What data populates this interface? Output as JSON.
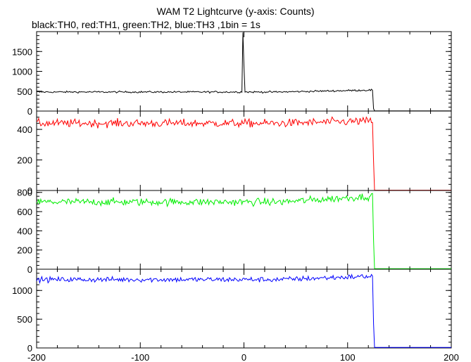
{
  "title": "WAM T2 Lightcurve (y-axis: Counts)",
  "subtitle": "black:TH0, red:TH1, green:TH2, blue:TH3 ,1bin = 1s",
  "chart_data": {
    "type": "line",
    "xlim": [
      -200,
      200
    ],
    "x_ticks": [
      -200,
      -100,
      0,
      100,
      200
    ],
    "x_tick_labels": [
      "-200",
      "-100",
      "0",
      "100",
      "200"
    ],
    "grid": false,
    "panels": [
      {
        "series_label": "TH0",
        "color": "#000000",
        "ylim": [
          0,
          2000
        ],
        "y_ticks": [
          0,
          500,
          1000,
          1500
        ],
        "y_tick_labels": [
          "0",
          "500",
          "1000",
          "1500"
        ],
        "baseline": 480,
        "noise": 22,
        "trend_end": 530,
        "drop_x": 125,
        "post_value": 5,
        "spike": {
          "x": -1,
          "peak": 1980,
          "decay_to": 1150
        }
      },
      {
        "series_label": "TH1",
        "color": "#ff0000",
        "ylim": [
          0,
          520
        ],
        "y_ticks": [
          0,
          200,
          400
        ],
        "y_tick_labels": [
          "0",
          "200",
          "400"
        ],
        "baseline": 440,
        "noise": 26,
        "trend_end": 455,
        "drop_x": 125,
        "post_value": 2,
        "step": {
          "x": 125,
          "value": 190
        }
      },
      {
        "series_label": "TH2",
        "color": "#00ee00",
        "ylim": [
          0,
          820
        ],
        "y_ticks": [
          0,
          200,
          400,
          600,
          800
        ],
        "y_tick_labels": [
          "0",
          "200",
          "400",
          "600",
          "800"
        ],
        "baseline": 700,
        "noise": 38,
        "trend_end": 760,
        "drop_x": 125,
        "post_value": 5,
        "step": {
          "x": 125,
          "value": 300
        }
      },
      {
        "series_label": "TH3",
        "color": "#0000ff",
        "ylim": [
          0,
          1370
        ],
        "y_ticks": [
          0,
          500,
          1000
        ],
        "y_tick_labels": [
          "0",
          "500",
          "1000"
        ],
        "baseline": 1190,
        "noise": 45,
        "trend_end": 1250,
        "drop_x": 125,
        "post_value": 10,
        "step": {
          "x": 125,
          "value": 420
        }
      }
    ]
  }
}
